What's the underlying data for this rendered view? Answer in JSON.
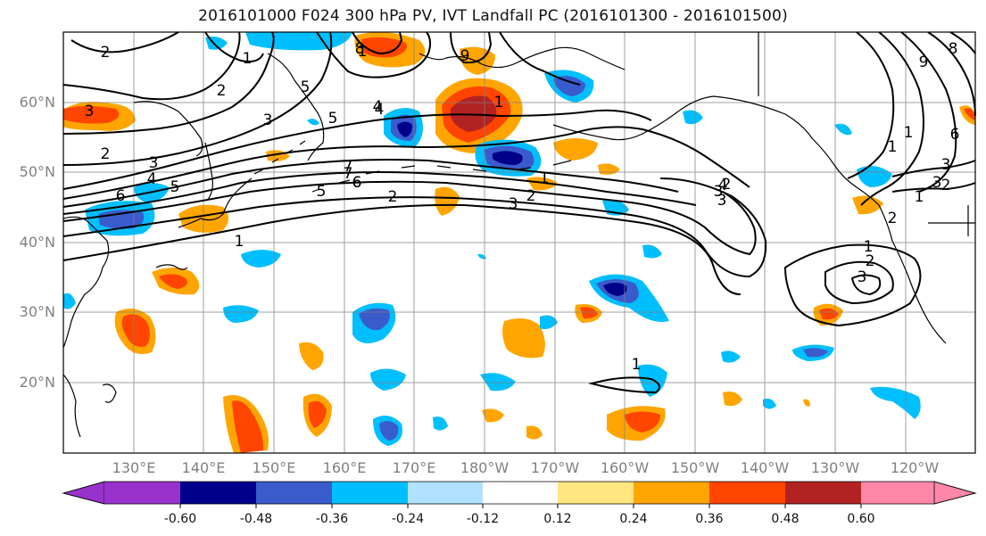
{
  "title": "2016101000 F024 300 hPa PV, IVT Landfall PC (2016101300 - 2016101500)",
  "lat_labels": [
    "60°N",
    "50°N",
    "40°N",
    "30°N",
    "20°N"
  ],
  "lon_labels": [
    "130°E",
    "140°E",
    "150°E",
    "160°E",
    "170°E",
    "180°W",
    "170°W",
    "160°W",
    "150°W",
    "140°W",
    "130°W",
    "120°W"
  ],
  "colorbar": {
    "labels": [
      "-0.60",
      "-0.48",
      "-0.36",
      "-0.24",
      "-0.12",
      "0.12",
      "0.24",
      "0.36",
      "0.48",
      "0.60"
    ],
    "colors": [
      "#9932cc",
      "#00008b",
      "#3a5bcc",
      "#00bfff",
      "#b0e2ff",
      "#ffffff",
      "#ffe680",
      "#ffa500",
      "#ff4500",
      "#b22222",
      "#ff88aa"
    ]
  },
  "contour_labels": [
    "2",
    "3",
    "2",
    "3",
    "4",
    "5",
    "6",
    "7",
    "6",
    "5",
    "4",
    "3",
    "2",
    "1",
    "1",
    "1",
    "1",
    "2",
    "3",
    "1",
    "3",
    "2",
    "1",
    "6",
    "1",
    "1",
    "2",
    "3",
    "5",
    "4",
    "3",
    "2",
    "1",
    "2",
    "3",
    "4",
    "7",
    "6",
    "5",
    "1",
    "2",
    "3",
    "8",
    "9",
    "8",
    "9"
  ],
  "map_colors": {
    "land_line": "#000000",
    "grid": "#808080",
    "contour": "#000000"
  }
}
